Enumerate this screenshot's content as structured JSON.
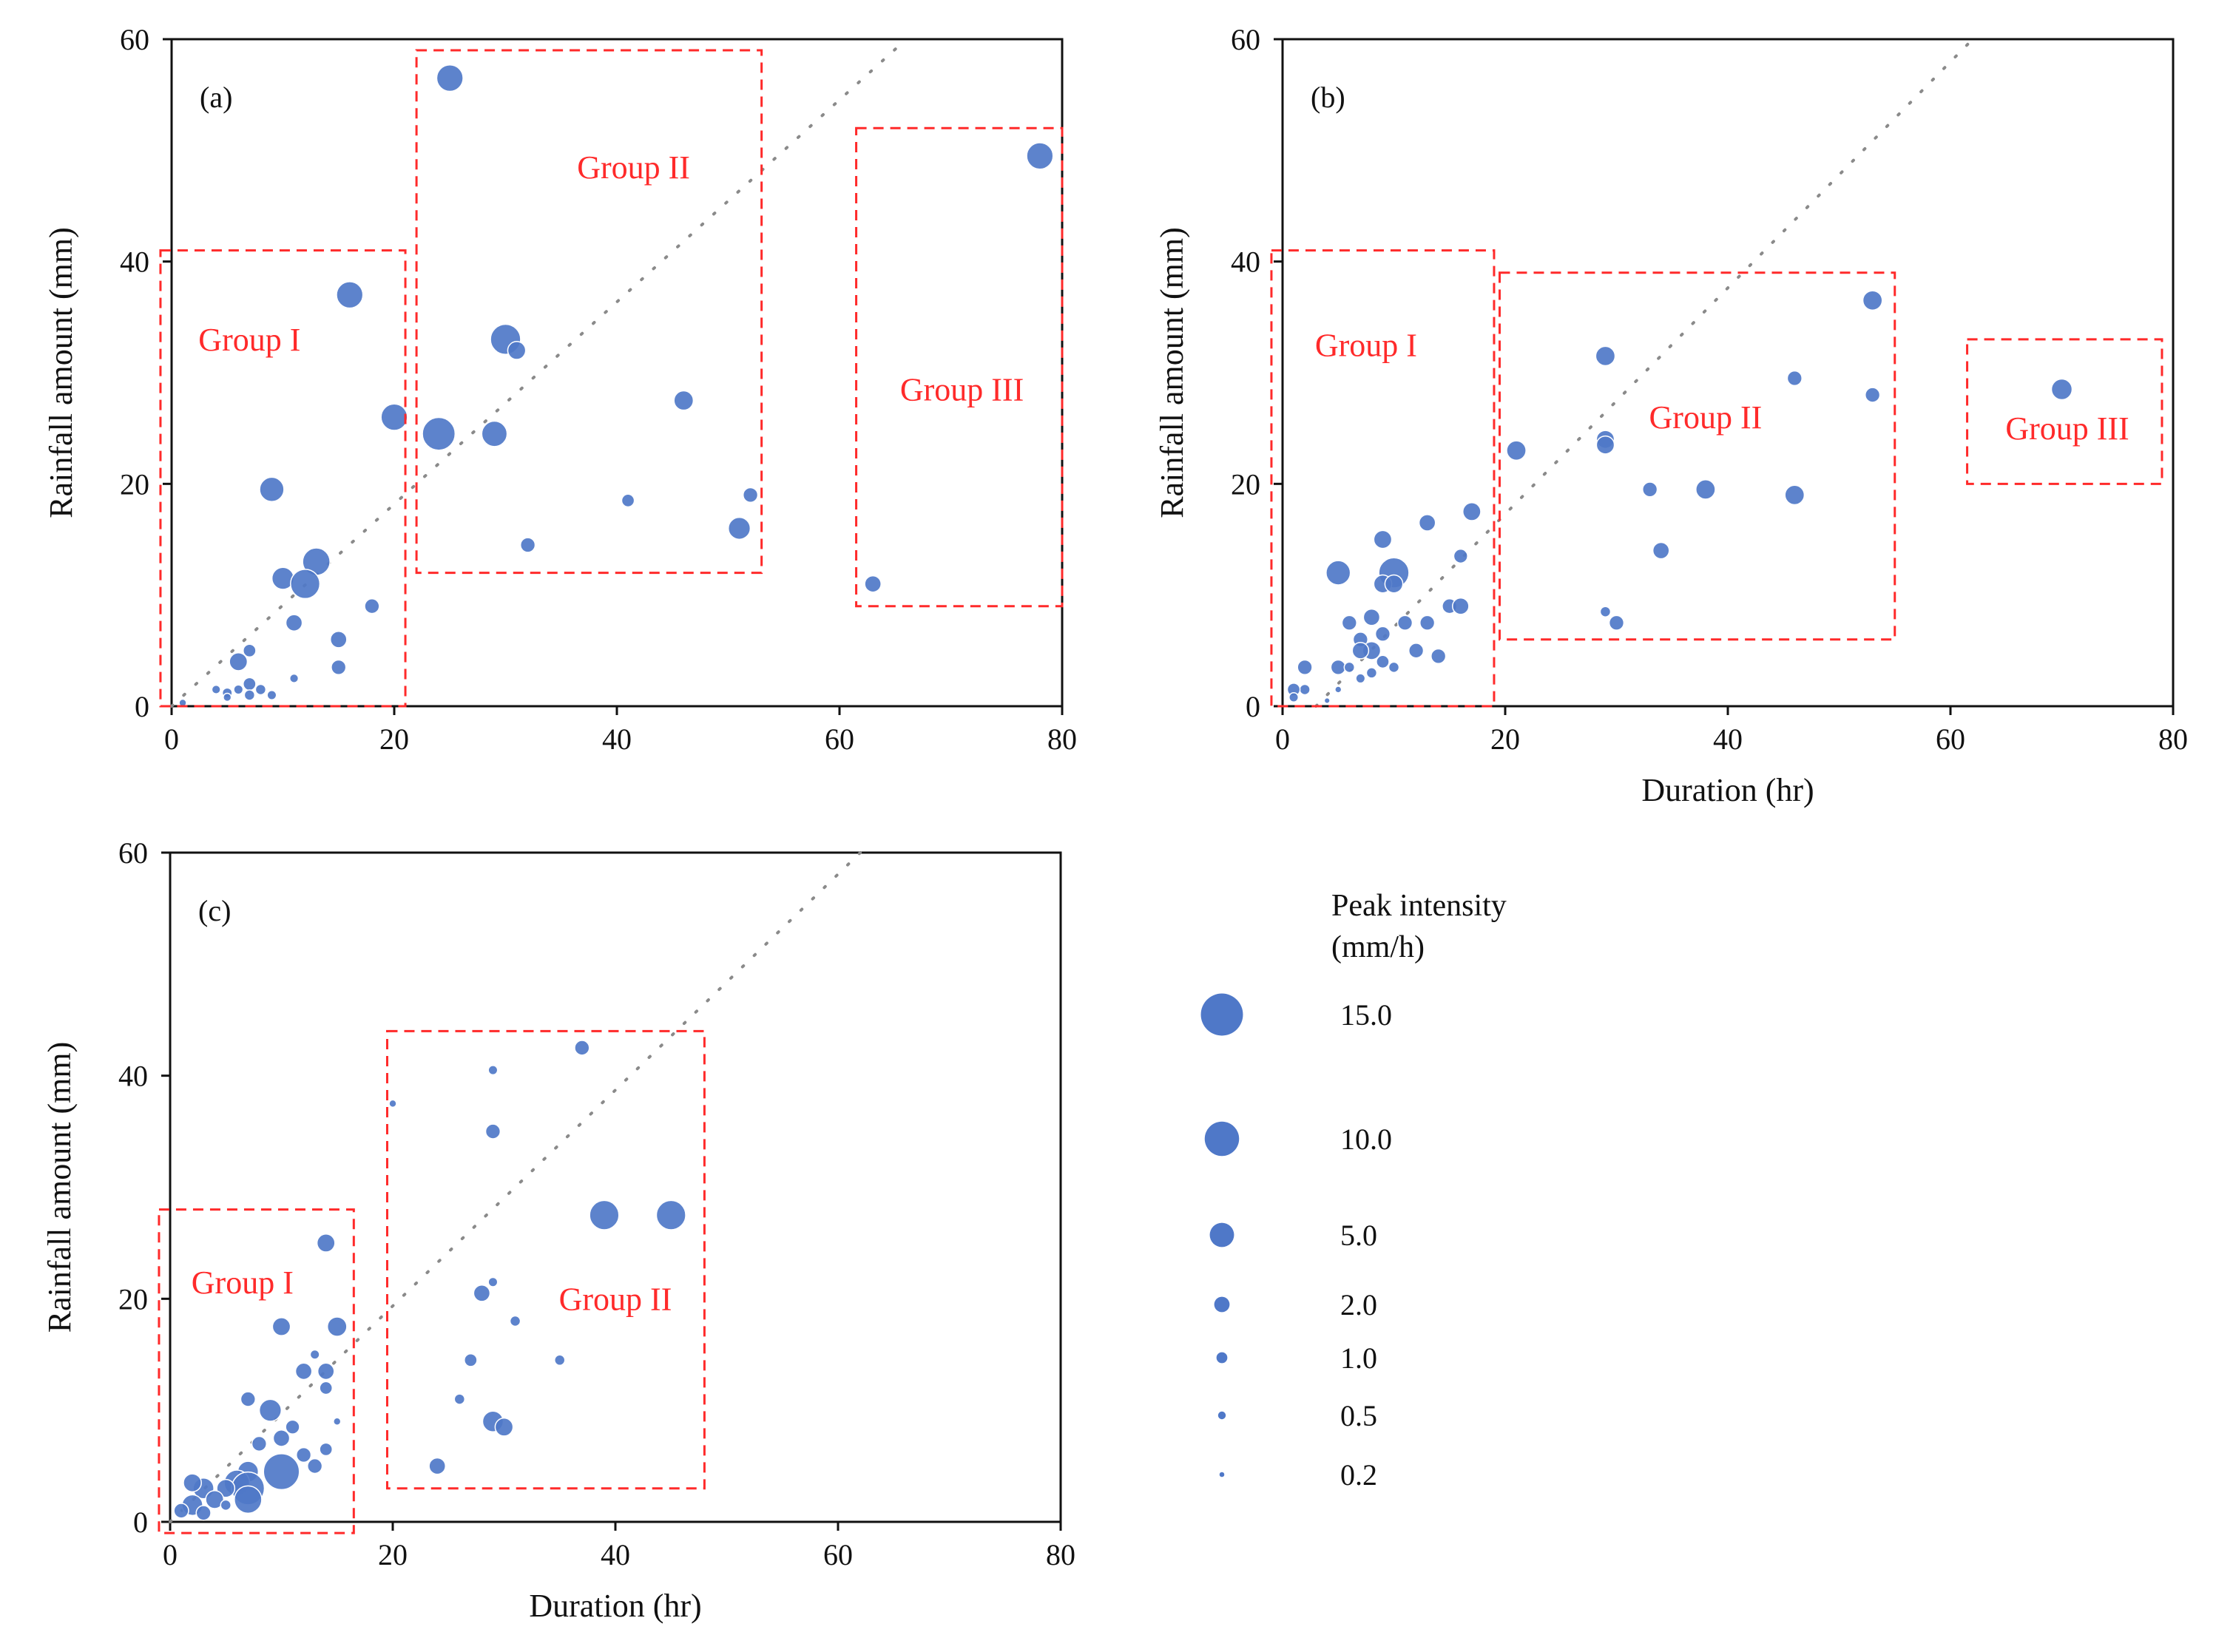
{
  "colors": {
    "bubble": "#4f78c8",
    "group_box": "#ff2a2a",
    "trend": "#8a8a8a",
    "axis": "#111111"
  },
  "legend": {
    "title_line1": "Peak intensity",
    "title_line2": "(mm/h)",
    "items": [
      {
        "label": "15.0",
        "value": 15.0
      },
      {
        "label": "10.0",
        "value": 10.0
      },
      {
        "label": "5.0",
        "value": 5.0
      },
      {
        "label": "2.0",
        "value": 2.0
      },
      {
        "label": "1.0",
        "value": 1.0
      },
      {
        "label": "0.5",
        "value": 0.5
      },
      {
        "label": "0.2",
        "value": 0.2
      }
    ]
  },
  "chart_data": [
    {
      "type": "scatter",
      "panel_label": "(a)",
      "xlabel": "",
      "ylabel": "Rainfall amount (mm)",
      "xlim": [
        0,
        80
      ],
      "ylim": [
        0,
        60
      ],
      "xticks": [
        "0",
        "20",
        "40",
        "60",
        "80"
      ],
      "yticks": [
        "0",
        "20",
        "40",
        "60"
      ],
      "trend": {
        "x0": 0,
        "y0": 0,
        "x1": 66,
        "y1": 60
      },
      "groups": [
        {
          "label": "Group I",
          "x_range": [
            -1,
            21
          ],
          "y_range": [
            0,
            41
          ],
          "label_at": [
            7,
            32
          ]
        },
        {
          "label": "Group II",
          "x_range": [
            22,
            53
          ],
          "y_range": [
            12,
            59
          ],
          "label_at": [
            41.5,
            47.5
          ]
        },
        {
          "label": "Group III",
          "x_range": [
            61.5,
            80
          ],
          "y_range": [
            9,
            52
          ],
          "label_at": [
            71,
            27.5
          ]
        }
      ],
      "points": [
        {
          "x": 25,
          "y": 56.5,
          "intensity": 6.5
        },
        {
          "x": 78,
          "y": 49.5,
          "intensity": 6.5
        },
        {
          "x": 16,
          "y": 37,
          "intensity": 6.5
        },
        {
          "x": 30,
          "y": 33,
          "intensity": 8.5
        },
        {
          "x": 31,
          "y": 32,
          "intensity": 3.0
        },
        {
          "x": 20,
          "y": 26,
          "intensity": 6.5
        },
        {
          "x": 24,
          "y": 24.5,
          "intensity": 10
        },
        {
          "x": 29,
          "y": 24.5,
          "intensity": 6.0
        },
        {
          "x": 46,
          "y": 27.5,
          "intensity": 3.5
        },
        {
          "x": 9,
          "y": 19.5,
          "intensity": 5.5
        },
        {
          "x": 41,
          "y": 18.5,
          "intensity": 1.5
        },
        {
          "x": 52,
          "y": 19,
          "intensity": 2.0
        },
        {
          "x": 51,
          "y": 16,
          "intensity": 4.5
        },
        {
          "x": 32,
          "y": 14.5,
          "intensity": 2.0
        },
        {
          "x": 13,
          "y": 13,
          "intensity": 7.0
        },
        {
          "x": 10,
          "y": 11.5,
          "intensity": 4.5
        },
        {
          "x": 12,
          "y": 11,
          "intensity": 8.0
        },
        {
          "x": 63,
          "y": 11,
          "intensity": 2.5
        },
        {
          "x": 18,
          "y": 9,
          "intensity": 2.0
        },
        {
          "x": 11,
          "y": 7.5,
          "intensity": 2.5
        },
        {
          "x": 15,
          "y": 6,
          "intensity": 2.5
        },
        {
          "x": 7,
          "y": 5,
          "intensity": 1.5
        },
        {
          "x": 6,
          "y": 4,
          "intensity": 3.0
        },
        {
          "x": 15,
          "y": 3.5,
          "intensity": 2.0
        },
        {
          "x": 11,
          "y": 2.5,
          "intensity": 0.7
        },
        {
          "x": 7,
          "y": 2,
          "intensity": 1.5
        },
        {
          "x": 4,
          "y": 1.5,
          "intensity": 0.7
        },
        {
          "x": 5,
          "y": 1.2,
          "intensity": 0.9
        },
        {
          "x": 6,
          "y": 1.5,
          "intensity": 0.8
        },
        {
          "x": 8,
          "y": 1.5,
          "intensity": 1.0
        },
        {
          "x": 9,
          "y": 1,
          "intensity": 0.8
        },
        {
          "x": 7,
          "y": 1,
          "intensity": 1.0
        },
        {
          "x": 5,
          "y": 0.8,
          "intensity": 0.6
        },
        {
          "x": 1,
          "y": 0.3,
          "intensity": 0.5
        }
      ]
    },
    {
      "type": "scatter",
      "panel_label": "(b)",
      "xlabel": "Duration (hr)",
      "ylabel": "Rainfall amount (mm)",
      "xlim": [
        0,
        80
      ],
      "ylim": [
        0,
        60
      ],
      "xticks": [
        "0",
        "20",
        "40",
        "60",
        "80"
      ],
      "yticks": [
        "0",
        "20",
        "40",
        "60"
      ],
      "trend": {
        "x0": 3,
        "y0": 0,
        "x1": 62,
        "y1": 60
      },
      "groups": [
        {
          "label": "Group I",
          "x_range": [
            -1,
            19
          ],
          "y_range": [
            0,
            41
          ],
          "label_at": [
            7.5,
            31.5
          ]
        },
        {
          "label": "Group II",
          "x_range": [
            19.5,
            55
          ],
          "y_range": [
            6,
            39
          ],
          "label_at": [
            38,
            25
          ]
        },
        {
          "label": "Group III",
          "x_range": [
            61.5,
            79
          ],
          "y_range": [
            20,
            33
          ],
          "label_at": [
            70.5,
            24
          ]
        }
      ],
      "points": [
        {
          "x": 53,
          "y": 36.5,
          "intensity": 3.5
        },
        {
          "x": 29,
          "y": 31.5,
          "intensity": 3.5
        },
        {
          "x": 46,
          "y": 29.5,
          "intensity": 2.0
        },
        {
          "x": 70,
          "y": 28.5,
          "intensity": 4.0
        },
        {
          "x": 53,
          "y": 28,
          "intensity": 2.0
        },
        {
          "x": 29,
          "y": 24,
          "intensity": 3.0
        },
        {
          "x": 29,
          "y": 23.5,
          "intensity": 3.0
        },
        {
          "x": 21,
          "y": 23,
          "intensity": 3.5
        },
        {
          "x": 33,
          "y": 19.5,
          "intensity": 2.0
        },
        {
          "x": 38,
          "y": 19.5,
          "intensity": 3.5
        },
        {
          "x": 46,
          "y": 19,
          "intensity": 3.5
        },
        {
          "x": 17,
          "y": 17.5,
          "intensity": 3.0
        },
        {
          "x": 13,
          "y": 16.5,
          "intensity": 2.5
        },
        {
          "x": 9,
          "y": 15,
          "intensity": 3.0
        },
        {
          "x": 34,
          "y": 14,
          "intensity": 2.5
        },
        {
          "x": 16,
          "y": 13.5,
          "intensity": 1.8
        },
        {
          "x": 5,
          "y": 12,
          "intensity": 5.5
        },
        {
          "x": 10,
          "y": 12,
          "intensity": 8.5
        },
        {
          "x": 9,
          "y": 11,
          "intensity": 3.0
        },
        {
          "x": 10,
          "y": 11,
          "intensity": 3.0
        },
        {
          "x": 29,
          "y": 8.5,
          "intensity": 1.0
        },
        {
          "x": 15,
          "y": 9,
          "intensity": 2.0
        },
        {
          "x": 16,
          "y": 9,
          "intensity": 2.5
        },
        {
          "x": 8,
          "y": 8,
          "intensity": 2.5
        },
        {
          "x": 11,
          "y": 7.5,
          "intensity": 2.0
        },
        {
          "x": 13,
          "y": 7.5,
          "intensity": 2.0
        },
        {
          "x": 6,
          "y": 7.5,
          "intensity": 2.0
        },
        {
          "x": 30,
          "y": 7.5,
          "intensity": 2.0
        },
        {
          "x": 9,
          "y": 6.5,
          "intensity": 2.0
        },
        {
          "x": 7,
          "y": 6,
          "intensity": 2.0
        },
        {
          "x": 12,
          "y": 5,
          "intensity": 2.0
        },
        {
          "x": 14,
          "y": 4.5,
          "intensity": 2.0
        },
        {
          "x": 8,
          "y": 5,
          "intensity": 3.0
        },
        {
          "x": 7,
          "y": 5,
          "intensity": 2.5
        },
        {
          "x": 2,
          "y": 3.5,
          "intensity": 2.0
        },
        {
          "x": 5,
          "y": 3.5,
          "intensity": 2.0
        },
        {
          "x": 9,
          "y": 4,
          "intensity": 1.5
        },
        {
          "x": 10,
          "y": 3.5,
          "intensity": 1.0
        },
        {
          "x": 6,
          "y": 3.5,
          "intensity": 1.0
        },
        {
          "x": 8,
          "y": 3,
          "intensity": 1.0
        },
        {
          "x": 7,
          "y": 2.5,
          "intensity": 0.8
        },
        {
          "x": 2,
          "y": 1.5,
          "intensity": 1.0
        },
        {
          "x": 1,
          "y": 1.5,
          "intensity": 1.5
        },
        {
          "x": 1,
          "y": 0.8,
          "intensity": 0.8
        },
        {
          "x": 5,
          "y": 1.5,
          "intensity": 0.4
        },
        {
          "x": 4,
          "y": 0.5,
          "intensity": 0.3
        }
      ]
    },
    {
      "type": "scatter",
      "panel_label": "(c)",
      "xlabel": "Duration (hr)",
      "ylabel": "Rainfall amount (mm)",
      "xlim": [
        0,
        80
      ],
      "ylim": [
        0,
        60
      ],
      "xticks": [
        "0",
        "20",
        "40",
        "60",
        "80"
      ],
      "yticks": [
        "0",
        "20",
        "40",
        "60"
      ],
      "trend": {
        "x0": 0,
        "y0": 0,
        "x1": 62,
        "y1": 60
      },
      "groups": [
        {
          "label": "Group I",
          "x_range": [
            -1,
            16.5
          ],
          "y_range": [
            -1,
            28
          ],
          "label_at": [
            6.5,
            20.5
          ]
        },
        {
          "label": "Group II",
          "x_range": [
            19.5,
            48
          ],
          "y_range": [
            3,
            44
          ],
          "label_at": [
            40,
            19
          ]
        }
      ],
      "points": [
        {
          "x": 37,
          "y": 42.5,
          "intensity": 2.0
        },
        {
          "x": 29,
          "y": 40.5,
          "intensity": 0.8
        },
        {
          "x": 20,
          "y": 37.5,
          "intensity": 0.5
        },
        {
          "x": 29,
          "y": 35,
          "intensity": 2.0
        },
        {
          "x": 39,
          "y": 27.5,
          "intensity": 8.0
        },
        {
          "x": 45,
          "y": 27.5,
          "intensity": 8.0
        },
        {
          "x": 14,
          "y": 25,
          "intensity": 3.0
        },
        {
          "x": 29,
          "y": 21.5,
          "intensity": 0.8
        },
        {
          "x": 28,
          "y": 20.5,
          "intensity": 2.5
        },
        {
          "x": 31,
          "y": 18,
          "intensity": 1.0
        },
        {
          "x": 10,
          "y": 17.5,
          "intensity": 3.0
        },
        {
          "x": 15,
          "y": 17.5,
          "intensity": 3.5
        },
        {
          "x": 13,
          "y": 15,
          "intensity": 0.8
        },
        {
          "x": 27,
          "y": 14.5,
          "intensity": 1.5
        },
        {
          "x": 35,
          "y": 14.5,
          "intensity": 1.0
        },
        {
          "x": 12,
          "y": 13.5,
          "intensity": 2.5
        },
        {
          "x": 14,
          "y": 13.5,
          "intensity": 2.5
        },
        {
          "x": 14,
          "y": 12,
          "intensity": 1.5
        },
        {
          "x": 7,
          "y": 11,
          "intensity": 2.0
        },
        {
          "x": 26,
          "y": 11,
          "intensity": 1.0
        },
        {
          "x": 9,
          "y": 10,
          "intensity": 4.5
        },
        {
          "x": 15,
          "y": 9,
          "intensity": 0.5
        },
        {
          "x": 29,
          "y": 9,
          "intensity": 4.0
        },
        {
          "x": 30,
          "y": 8.5,
          "intensity": 3.0
        },
        {
          "x": 11,
          "y": 8.5,
          "intensity": 1.8
        },
        {
          "x": 10,
          "y": 7.5,
          "intensity": 2.5
        },
        {
          "x": 8,
          "y": 7,
          "intensity": 2.0
        },
        {
          "x": 12,
          "y": 6,
          "intensity": 2.0
        },
        {
          "x": 14,
          "y": 6.5,
          "intensity": 1.5
        },
        {
          "x": 13,
          "y": 5,
          "intensity": 2.0
        },
        {
          "x": 24,
          "y": 5,
          "intensity": 2.5
        },
        {
          "x": 10,
          "y": 4.5,
          "intensity": 12.0
        },
        {
          "x": 7,
          "y": 4.5,
          "intensity": 4.0
        },
        {
          "x": 6,
          "y": 3.5,
          "intensity": 6.0
        },
        {
          "x": 7,
          "y": 3,
          "intensity": 10.0
        },
        {
          "x": 5,
          "y": 3,
          "intensity": 3.0
        },
        {
          "x": 3,
          "y": 3,
          "intensity": 4.0
        },
        {
          "x": 2,
          "y": 3.5,
          "intensity": 3.0
        },
        {
          "x": 7,
          "y": 2,
          "intensity": 7.0
        },
        {
          "x": 4,
          "y": 2,
          "intensity": 3.0
        },
        {
          "x": 2,
          "y": 1.5,
          "intensity": 4.0
        },
        {
          "x": 1,
          "y": 1,
          "intensity": 2.0
        },
        {
          "x": 3,
          "y": 0.8,
          "intensity": 2.0
        },
        {
          "x": 5,
          "y": 1.5,
          "intensity": 1.0
        }
      ]
    }
  ]
}
